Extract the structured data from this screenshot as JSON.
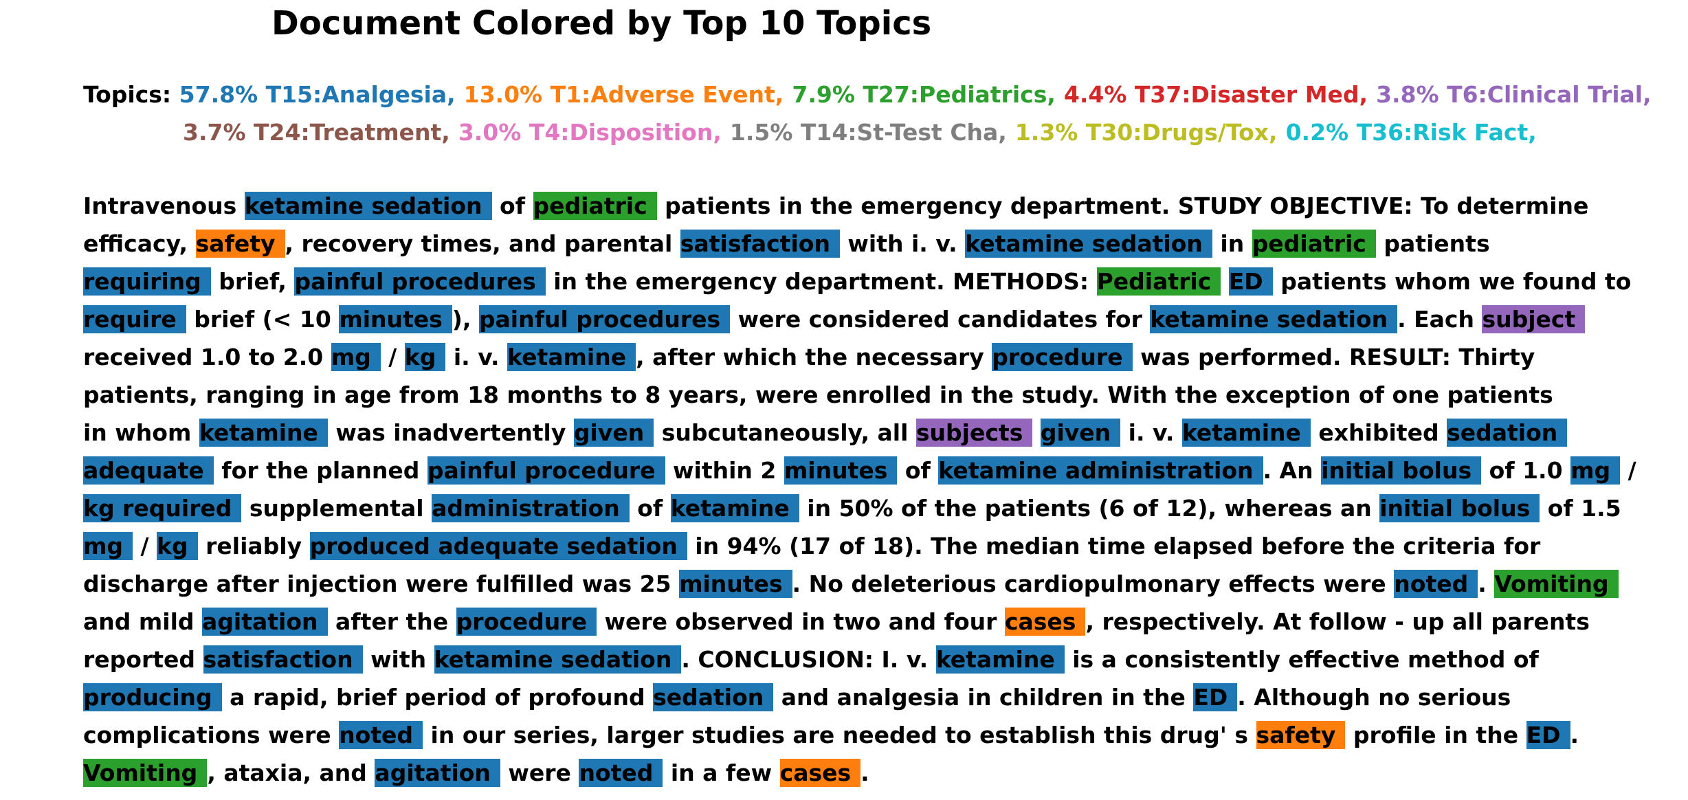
{
  "title": "Document Colored by Top 10 Topics",
  "topics_label": "Topics:",
  "topic_colors": {
    "T15": "#1f77b4",
    "T1": "#ff7f0e",
    "T27": "#2ca02c",
    "T37": "#d62728",
    "T6": "#9467bd",
    "T24": "#8c564b",
    "T4": "#e377c2",
    "T14": "#7f7f7f",
    "T30": "#bcbd22",
    "T36": "#17becf"
  },
  "topics": [
    {
      "text": "57.8% T15:Analgesia,",
      "id": "T15",
      "percent": 57.8,
      "color": "#1f77b4"
    },
    {
      "text": "13.0% T1:Adverse Event,",
      "id": "T1",
      "percent": 13.0,
      "color": "#ff7f0e"
    },
    {
      "text": "7.9% T27:Pediatrics,",
      "id": "T27",
      "percent": 7.9,
      "color": "#2ca02c"
    },
    {
      "text": "4.4% T37:Disaster Med,",
      "id": "T37",
      "percent": 4.4,
      "color": "#d62728"
    },
    {
      "text": "3.8% T6:Clinical Trial,",
      "id": "T6",
      "percent": 3.8,
      "color": "#9467bd"
    },
    {
      "text": "3.7% T24:Treatment,",
      "id": "T24",
      "percent": 3.7,
      "color": "#8c564b"
    },
    {
      "text": "3.0% T4:Disposition,",
      "id": "T4",
      "percent": 3.0,
      "color": "#e377c2"
    },
    {
      "text": "1.5% T14:St-Test Cha,",
      "id": "T14",
      "percent": 1.5,
      "color": "#7f7f7f"
    },
    {
      "text": "1.3% T30:Drugs/Tox,",
      "id": "T30",
      "percent": 1.3,
      "color": "#bcbd22"
    },
    {
      "text": "0.2% T36:Risk Fact,",
      "id": "T36",
      "percent": 0.2,
      "color": "#17becf"
    }
  ],
  "document_lines": [
    [
      {
        "text": "Intravenous "
      },
      {
        "text": "ketamine sedation",
        "topic": "T15"
      },
      {
        "text": " of "
      },
      {
        "text": "pediatric",
        "topic": "T27"
      },
      {
        "text": " patients in the emergency department. STUDY OBJECTIVE: To determine"
      }
    ],
    [
      {
        "text": "efficacy, "
      },
      {
        "text": "safety",
        "topic": "T1"
      },
      {
        "text": ", recovery times, and parental "
      },
      {
        "text": "satisfaction",
        "topic": "T15"
      },
      {
        "text": " with i. v. "
      },
      {
        "text": "ketamine sedation",
        "topic": "T15"
      },
      {
        "text": " in "
      },
      {
        "text": "pediatric",
        "topic": "T27"
      },
      {
        "text": " patients"
      }
    ],
    [
      {
        "text": "requiring",
        "topic": "T15"
      },
      {
        "text": " brief, "
      },
      {
        "text": "painful procedures",
        "topic": "T15"
      },
      {
        "text": " in the emergency department. METHODS: "
      },
      {
        "text": "Pediatric",
        "topic": "T27"
      },
      {
        "text": " "
      },
      {
        "text": "ED",
        "topic": "T15"
      },
      {
        "text": " patients whom we found to"
      }
    ],
    [
      {
        "text": "require",
        "topic": "T15"
      },
      {
        "text": " brief (< 10 "
      },
      {
        "text": "minutes",
        "topic": "T15"
      },
      {
        "text": "), "
      },
      {
        "text": "painful procedures",
        "topic": "T15"
      },
      {
        "text": " were considered candidates for "
      },
      {
        "text": "ketamine sedation",
        "topic": "T15"
      },
      {
        "text": ". Each "
      },
      {
        "text": "subject",
        "topic": "T6"
      }
    ],
    [
      {
        "text": "received 1.0 to 2.0 "
      },
      {
        "text": "mg",
        "topic": "T15"
      },
      {
        "text": " / "
      },
      {
        "text": "kg",
        "topic": "T15"
      },
      {
        "text": " i. v. "
      },
      {
        "text": "ketamine",
        "topic": "T15"
      },
      {
        "text": ", after which the necessary "
      },
      {
        "text": "procedure",
        "topic": "T15"
      },
      {
        "text": " was performed. RESULT: Thirty"
      }
    ],
    [
      {
        "text": "patients, ranging in age from 18 months to 8 years, were enrolled in the study. With the exception of one patients"
      }
    ],
    [
      {
        "text": "in whom "
      },
      {
        "text": "ketamine",
        "topic": "T15"
      },
      {
        "text": " was inadvertently "
      },
      {
        "text": "given",
        "topic": "T15"
      },
      {
        "text": " subcutaneously, all "
      },
      {
        "text": "subjects",
        "topic": "T6"
      },
      {
        "text": " "
      },
      {
        "text": "given",
        "topic": "T15"
      },
      {
        "text": " i. v. "
      },
      {
        "text": "ketamine",
        "topic": "T15"
      },
      {
        "text": " exhibited "
      },
      {
        "text": "sedation",
        "topic": "T15"
      }
    ],
    [
      {
        "text": "adequate",
        "topic": "T15"
      },
      {
        "text": " for the planned "
      },
      {
        "text": "painful procedure",
        "topic": "T15"
      },
      {
        "text": " within 2 "
      },
      {
        "text": "minutes",
        "topic": "T15"
      },
      {
        "text": " of "
      },
      {
        "text": "ketamine administration",
        "topic": "T15"
      },
      {
        "text": ". An "
      },
      {
        "text": "initial bolus",
        "topic": "T15"
      },
      {
        "text": " of 1.0 "
      },
      {
        "text": "mg",
        "topic": "T15"
      },
      {
        "text": " /"
      }
    ],
    [
      {
        "text": "kg required",
        "topic": "T15"
      },
      {
        "text": " supplemental "
      },
      {
        "text": "administration",
        "topic": "T15"
      },
      {
        "text": " of "
      },
      {
        "text": "ketamine",
        "topic": "T15"
      },
      {
        "text": " in 50% of the patients (6 of 12), whereas an "
      },
      {
        "text": "initial bolus",
        "topic": "T15"
      },
      {
        "text": " of 1.5"
      }
    ],
    [
      {
        "text": "mg",
        "topic": "T15"
      },
      {
        "text": " / "
      },
      {
        "text": "kg",
        "topic": "T15"
      },
      {
        "text": " reliably "
      },
      {
        "text": "produced adequate sedation",
        "topic": "T15"
      },
      {
        "text": " in 94% (17 of 18). The median time elapsed before the criteria for"
      }
    ],
    [
      {
        "text": "discharge after injection were fulfilled was 25 "
      },
      {
        "text": "minutes",
        "topic": "T15"
      },
      {
        "text": ". No deleterious cardiopulmonary effects were "
      },
      {
        "text": "noted",
        "topic": "T15"
      },
      {
        "text": ". "
      },
      {
        "text": "Vomiting",
        "topic": "T27"
      }
    ],
    [
      {
        "text": "and mild "
      },
      {
        "text": "agitation",
        "topic": "T15"
      },
      {
        "text": " after the "
      },
      {
        "text": "procedure",
        "topic": "T15"
      },
      {
        "text": " were observed in two and four "
      },
      {
        "text": "cases",
        "topic": "T1"
      },
      {
        "text": ", respectively. At follow - up all parents"
      }
    ],
    [
      {
        "text": "reported "
      },
      {
        "text": "satisfaction",
        "topic": "T15"
      },
      {
        "text": " with "
      },
      {
        "text": "ketamine sedation",
        "topic": "T15"
      },
      {
        "text": ". CONCLUSION: I. v. "
      },
      {
        "text": "ketamine",
        "topic": "T15"
      },
      {
        "text": " is a consistently effective method of"
      }
    ],
    [
      {
        "text": "producing",
        "topic": "T15"
      },
      {
        "text": " a rapid, brief period of profound "
      },
      {
        "text": "sedation",
        "topic": "T15"
      },
      {
        "text": " and analgesia in children in the "
      },
      {
        "text": "ED",
        "topic": "T15"
      },
      {
        "text": ". Although no serious"
      }
    ],
    [
      {
        "text": "complications were "
      },
      {
        "text": "noted",
        "topic": "T15"
      },
      {
        "text": " in our series, larger studies are needed to establish this drug' s "
      },
      {
        "text": "safety",
        "topic": "T1"
      },
      {
        "text": " profile in the "
      },
      {
        "text": "ED",
        "topic": "T15"
      },
      {
        "text": "."
      }
    ],
    [
      {
        "text": "Vomiting",
        "topic": "T27"
      },
      {
        "text": ", ataxia, and "
      },
      {
        "text": "agitation",
        "topic": "T15"
      },
      {
        "text": " were "
      },
      {
        "text": "noted",
        "topic": "T15"
      },
      {
        "text": " in a few "
      },
      {
        "text": "cases",
        "topic": "T1"
      },
      {
        "text": "."
      }
    ]
  ]
}
